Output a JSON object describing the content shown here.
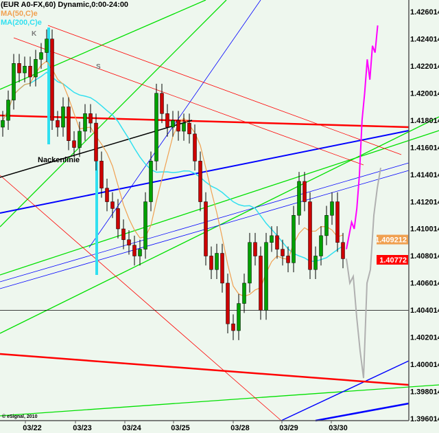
{
  "header": {
    "title": "(EUR A0-FX,60) Dynamic,0:00-24:00",
    "ma50": "MA(50,C)e",
    "ma200": "MA(200,C)e"
  },
  "colors": {
    "background": "#eef7ee",
    "up": "#00a000",
    "down": "#cc0000",
    "ma50": "#f0a050",
    "ma200": "#30e0f0",
    "projection_up": "#ff00ff",
    "projection_down": "#b0b0b0",
    "trend_red": "#ff0000",
    "trend_green": "#00e000",
    "trend_blue": "#0000ff"
  },
  "annotations": {
    "k": "K",
    "s": "S",
    "neckline": "Nackenlinie",
    "copyright": "© eSignal, 2010"
  },
  "chart_data": {
    "type": "candlestick",
    "x_ticks": [
      "03/22",
      "03/23",
      "03/24",
      "03/25",
      "03/28",
      "03/29",
      "03/30"
    ],
    "y_ticks": [
      "1.426014",
      "1.424014",
      "1.422014",
      "1.420014",
      "1.418014",
      "1.416014",
      "1.414014",
      "1.412014",
      "1.410014",
      "1.408014",
      "1.406014",
      "1.404014",
      "1.402014",
      "1.400014",
      "1.398014",
      "1.396014"
    ],
    "ylim": [
      1.396014,
      1.426014
    ],
    "closes": [
      1.418,
      1.4195,
      1.4222,
      1.4215,
      1.422,
      1.4212,
      1.4225,
      1.423,
      1.424,
      1.418,
      1.4175,
      1.419,
      1.4165,
      1.416,
      1.4172,
      1.4185,
      1.4178,
      1.415,
      1.413,
      1.412,
      1.4115,
      1.41,
      1.4092,
      1.4088,
      1.408,
      1.4085,
      1.412,
      1.415,
      1.42,
      1.4185,
      1.4175,
      1.418,
      1.4172,
      1.4178,
      1.417,
      1.415,
      1.412,
      1.408,
      1.407,
      1.4082,
      1.406,
      1.403,
      1.4025,
      1.4045,
      1.406,
      1.409,
      1.408,
      1.404,
      1.409,
      1.4095,
      1.4085,
      1.408,
      1.4075,
      1.411,
      1.4135,
      1.412,
      1.407,
      1.408,
      1.4095,
      1.411,
      1.412,
      1.409,
      1.4078
    ],
    "projection_up": [
      1.4085,
      1.4095,
      1.4105,
      1.41,
      1.4115,
      1.414,
      1.418,
      1.42,
      1.4225,
      1.421,
      1.4235,
      1.423,
      1.425
    ],
    "projection_down": [
      1.4078,
      1.406,
      1.4065,
      1.4035,
      1.401,
      1.399,
      1.406,
      1.407,
      1.411,
      1.413,
      1.4145
    ],
    "horizontal_level": 1.404,
    "last_price_labels": [
      {
        "value": "1.409212",
        "color": "#f0a050"
      },
      {
        "value": "1.40772",
        "color": "#ff0000"
      }
    ]
  }
}
